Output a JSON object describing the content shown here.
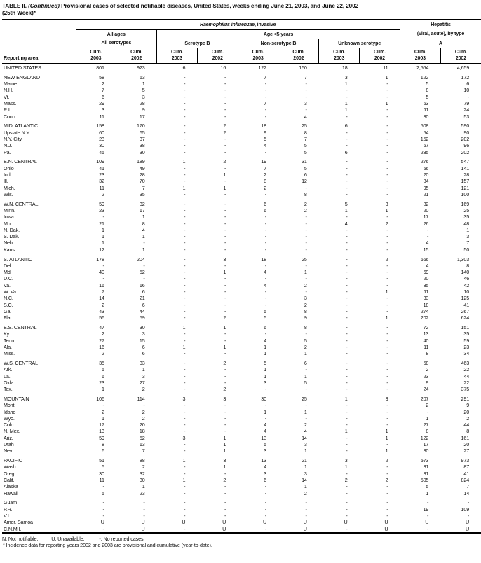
{
  "title": {
    "part1": "TABLE II.",
    "continued": "(Continued)",
    "part2": "Provisional cases of selected notifiable diseases, United States, weeks ending June 21, 2003, and June 22, 2002",
    "line2": "(25th Week)*"
  },
  "header": {
    "reporting_area": "Reporting area",
    "haemophilus_italic": "Haemophilus influenzae",
    "haemophilus_rest": ", invasive",
    "hepatitis_line1": "Hepatitis",
    "hepatitis_line2": "(viral, acute), by type",
    "all_ages": "All ages",
    "all_serotypes": "All serotypes",
    "age_under5": "Age <5 years",
    "serotype_b": "Serotype B",
    "non_serotype_b": "Non-serotype B",
    "unknown_serotype": "Unknown serotype",
    "type_a": "A",
    "cum_label": "Cum.",
    "year_pairs": [
      "2003",
      "2002"
    ]
  },
  "footnotes": {
    "legend": [
      "N: Not notifiable.",
      "U: Unavailable.",
      "-: No reported cases."
    ],
    "note": "* Incidence data for reporting years 2002 and 2003 are provisional and cumulative (year-to-date)."
  },
  "table": {
    "rows": [
      {
        "area": "UNITED STATES",
        "gap": false,
        "values": [
          "801",
          "923",
          "6",
          "16",
          "122",
          "150",
          "18",
          "11",
          "2,564",
          "4,659"
        ]
      },
      {
        "area": "NEW ENGLAND",
        "gap": true,
        "values": [
          "58",
          "63",
          "-",
          "-",
          "7",
          "7",
          "3",
          "1",
          "122",
          "172"
        ]
      },
      {
        "area": "Maine",
        "gap": false,
        "values": [
          "2",
          "1",
          "-",
          "-",
          "-",
          "-",
          "1",
          "-",
          "5",
          "6"
        ]
      },
      {
        "area": "N.H.",
        "gap": false,
        "values": [
          "7",
          "5",
          "-",
          "-",
          "-",
          "-",
          "-",
          "-",
          "8",
          "10"
        ]
      },
      {
        "area": "Vt.",
        "gap": false,
        "values": [
          "6",
          "3",
          "-",
          "-",
          "-",
          "-",
          "-",
          "-",
          "5",
          "-"
        ]
      },
      {
        "area": "Mass.",
        "gap": false,
        "values": [
          "29",
          "28",
          "-",
          "-",
          "7",
          "3",
          "1",
          "1",
          "63",
          "79"
        ]
      },
      {
        "area": "R.I.",
        "gap": false,
        "values": [
          "3",
          "9",
          "-",
          "-",
          "-",
          "-",
          "1",
          "-",
          "11",
          "24"
        ]
      },
      {
        "area": "Conn.",
        "gap": false,
        "values": [
          "11",
          "17",
          "-",
          "-",
          "-",
          "4",
          "-",
          "-",
          "30",
          "53"
        ]
      },
      {
        "area": "MID. ATLANTIC",
        "gap": true,
        "values": [
          "158",
          "170",
          "-",
          "2",
          "18",
          "25",
          "6",
          "-",
          "508",
          "590"
        ]
      },
      {
        "area": "Upstate N.Y.",
        "gap": false,
        "values": [
          "60",
          "65",
          "-",
          "2",
          "9",
          "8",
          "-",
          "-",
          "54",
          "90"
        ]
      },
      {
        "area": "N.Y. City",
        "gap": false,
        "values": [
          "23",
          "37",
          "-",
          "-",
          "5",
          "7",
          "-",
          "-",
          "152",
          "202"
        ]
      },
      {
        "area": "N.J.",
        "gap": false,
        "values": [
          "30",
          "38",
          "-",
          "-",
          "4",
          "5",
          "-",
          "-",
          "67",
          "96"
        ]
      },
      {
        "area": "Pa.",
        "gap": false,
        "values": [
          "45",
          "30",
          "-",
          "-",
          "-",
          "5",
          "6",
          "-",
          "235",
          "202"
        ]
      },
      {
        "area": "E.N. CENTRAL",
        "gap": true,
        "values": [
          "109",
          "189",
          "1",
          "2",
          "19",
          "31",
          "-",
          "-",
          "276",
          "547"
        ]
      },
      {
        "area": "Ohio",
        "gap": false,
        "values": [
          "41",
          "49",
          "-",
          "-",
          "7",
          "5",
          "-",
          "-",
          "56",
          "141"
        ]
      },
      {
        "area": "Ind.",
        "gap": false,
        "values": [
          "23",
          "28",
          "-",
          "1",
          "2",
          "6",
          "-",
          "-",
          "20",
          "28"
        ]
      },
      {
        "area": "Ill.",
        "gap": false,
        "values": [
          "32",
          "70",
          "-",
          "-",
          "8",
          "12",
          "-",
          "-",
          "84",
          "157"
        ]
      },
      {
        "area": "Mich.",
        "gap": false,
        "values": [
          "11",
          "7",
          "1",
          "1",
          "2",
          "-",
          "-",
          "-",
          "95",
          "121"
        ]
      },
      {
        "area": "Wis.",
        "gap": false,
        "values": [
          "2",
          "35",
          "-",
          "-",
          "-",
          "8",
          "-",
          "-",
          "21",
          "100"
        ]
      },
      {
        "area": "W.N. CENTRAL",
        "gap": true,
        "values": [
          "59",
          "32",
          "-",
          "-",
          "6",
          "2",
          "5",
          "3",
          "82",
          "169"
        ]
      },
      {
        "area": "Minn.",
        "gap": false,
        "values": [
          "23",
          "17",
          "-",
          "-",
          "6",
          "2",
          "1",
          "1",
          "20",
          "25"
        ]
      },
      {
        "area": "Iowa",
        "gap": false,
        "values": [
          "-",
          "1",
          "-",
          "-",
          "-",
          "-",
          "-",
          "-",
          "17",
          "35"
        ]
      },
      {
        "area": "Mo.",
        "gap": false,
        "values": [
          "21",
          "8",
          "-",
          "-",
          "-",
          "-",
          "4",
          "2",
          "26",
          "48"
        ]
      },
      {
        "area": "N. Dak.",
        "gap": false,
        "values": [
          "1",
          "4",
          "-",
          "-",
          "-",
          "-",
          "-",
          "-",
          "-",
          "1"
        ]
      },
      {
        "area": "S. Dak.",
        "gap": false,
        "values": [
          "1",
          "1",
          "-",
          "-",
          "-",
          "-",
          "-",
          "-",
          "-",
          "3"
        ]
      },
      {
        "area": "Nebr.",
        "gap": false,
        "values": [
          "1",
          "-",
          "-",
          "-",
          "-",
          "-",
          "-",
          "-",
          "4",
          "7"
        ]
      },
      {
        "area": "Kans.",
        "gap": false,
        "values": [
          "12",
          "1",
          "-",
          "-",
          "-",
          "-",
          "-",
          "-",
          "15",
          "50"
        ]
      },
      {
        "area": "S. ATLANTIC",
        "gap": true,
        "values": [
          "178",
          "204",
          "-",
          "3",
          "18",
          "25",
          "-",
          "2",
          "666",
          "1,303"
        ]
      },
      {
        "area": "Del.",
        "gap": false,
        "values": [
          "-",
          "-",
          "-",
          "-",
          "-",
          "-",
          "-",
          "-",
          "4",
          "8"
        ]
      },
      {
        "area": "Md.",
        "gap": false,
        "values": [
          "40",
          "52",
          "-",
          "1",
          "4",
          "1",
          "-",
          "-",
          "69",
          "140"
        ]
      },
      {
        "area": "D.C.",
        "gap": false,
        "values": [
          "-",
          "-",
          "-",
          "-",
          "-",
          "-",
          "-",
          "-",
          "20",
          "46"
        ]
      },
      {
        "area": "Va.",
        "gap": false,
        "values": [
          "16",
          "16",
          "-",
          "-",
          "4",
          "2",
          "-",
          "-",
          "35",
          "42"
        ]
      },
      {
        "area": "W. Va.",
        "gap": false,
        "values": [
          "7",
          "6",
          "-",
          "-",
          "-",
          "-",
          "-",
          "1",
          "11",
          "10"
        ]
      },
      {
        "area": "N.C.",
        "gap": false,
        "values": [
          "14",
          "21",
          "-",
          "-",
          "-",
          "3",
          "-",
          "-",
          "33",
          "125"
        ]
      },
      {
        "area": "S.C.",
        "gap": false,
        "values": [
          "2",
          "6",
          "-",
          "-",
          "-",
          "2",
          "-",
          "-",
          "18",
          "41"
        ]
      },
      {
        "area": "Ga.",
        "gap": false,
        "values": [
          "43",
          "44",
          "-",
          "-",
          "5",
          "8",
          "-",
          "-",
          "274",
          "267"
        ]
      },
      {
        "area": "Fla.",
        "gap": false,
        "values": [
          "56",
          "59",
          "-",
          "2",
          "5",
          "9",
          "-",
          "1",
          "202",
          "624"
        ]
      },
      {
        "area": "E.S. CENTRAL",
        "gap": true,
        "values": [
          "47",
          "30",
          "1",
          "1",
          "6",
          "8",
          "-",
          "-",
          "72",
          "151"
        ]
      },
      {
        "area": "Ky.",
        "gap": false,
        "values": [
          "2",
          "3",
          "-",
          "-",
          "-",
          "-",
          "-",
          "-",
          "13",
          "35"
        ]
      },
      {
        "area": "Tenn.",
        "gap": false,
        "values": [
          "27",
          "15",
          "-",
          "-",
          "4",
          "5",
          "-",
          "-",
          "40",
          "59"
        ]
      },
      {
        "area": "Ala.",
        "gap": false,
        "values": [
          "16",
          "6",
          "1",
          "1",
          "1",
          "2",
          "-",
          "-",
          "11",
          "23"
        ]
      },
      {
        "area": "Miss.",
        "gap": false,
        "values": [
          "2",
          "6",
          "-",
          "-",
          "1",
          "1",
          "-",
          "-",
          "8",
          "34"
        ]
      },
      {
        "area": "W.S. CENTRAL",
        "gap": true,
        "values": [
          "35",
          "33",
          "-",
          "2",
          "5",
          "6",
          "-",
          "-",
          "58",
          "463"
        ]
      },
      {
        "area": "Ark.",
        "gap": false,
        "values": [
          "5",
          "1",
          "-",
          "-",
          "1",
          "-",
          "-",
          "-",
          "2",
          "22"
        ]
      },
      {
        "area": "La.",
        "gap": false,
        "values": [
          "6",
          "3",
          "-",
          "-",
          "1",
          "1",
          "-",
          "-",
          "23",
          "44"
        ]
      },
      {
        "area": "Okla.",
        "gap": false,
        "values": [
          "23",
          "27",
          "-",
          "-",
          "3",
          "5",
          "-",
          "-",
          "9",
          "22"
        ]
      },
      {
        "area": "Tex.",
        "gap": false,
        "values": [
          "1",
          "2",
          "-",
          "2",
          "-",
          "-",
          "-",
          "-",
          "24",
          "375"
        ]
      },
      {
        "area": "MOUNTAIN",
        "gap": true,
        "values": [
          "106",
          "114",
          "3",
          "3",
          "30",
          "25",
          "1",
          "3",
          "207",
          "291"
        ]
      },
      {
        "area": "Mont.",
        "gap": false,
        "values": [
          "-",
          "-",
          "-",
          "-",
          "-",
          "-",
          "-",
          "-",
          "2",
          "9"
        ]
      },
      {
        "area": "Idaho",
        "gap": false,
        "values": [
          "2",
          "2",
          "-",
          "-",
          "1",
          "1",
          "-",
          "-",
          "-",
          "20"
        ]
      },
      {
        "area": "Wyo.",
        "gap": false,
        "values": [
          "1",
          "2",
          "-",
          "-",
          "-",
          "-",
          "-",
          "-",
          "1",
          "2"
        ]
      },
      {
        "area": "Colo.",
        "gap": false,
        "values": [
          "17",
          "20",
          "-",
          "-",
          "4",
          "2",
          "-",
          "-",
          "27",
          "44"
        ]
      },
      {
        "area": "N. Mex.",
        "gap": false,
        "values": [
          "13",
          "18",
          "-",
          "-",
          "4",
          "4",
          "1",
          "1",
          "8",
          "8"
        ]
      },
      {
        "area": "Ariz.",
        "gap": false,
        "values": [
          "59",
          "52",
          "3",
          "1",
          "13",
          "14",
          "-",
          "1",
          "122",
          "161"
        ]
      },
      {
        "area": "Utah",
        "gap": false,
        "values": [
          "8",
          "13",
          "-",
          "1",
          "5",
          "3",
          "-",
          "-",
          "17",
          "20"
        ]
      },
      {
        "area": "Nev.",
        "gap": false,
        "values": [
          "6",
          "7",
          "-",
          "1",
          "3",
          "1",
          "-",
          "1",
          "30",
          "27"
        ]
      },
      {
        "area": "PACIFIC",
        "gap": true,
        "values": [
          "51",
          "88",
          "1",
          "3",
          "13",
          "21",
          "3",
          "2",
          "573",
          "973"
        ]
      },
      {
        "area": "Wash.",
        "gap": false,
        "values": [
          "5",
          "2",
          "-",
          "1",
          "4",
          "1",
          "1",
          "-",
          "31",
          "87"
        ]
      },
      {
        "area": "Oreg.",
        "gap": false,
        "values": [
          "30",
          "32",
          "-",
          "-",
          "3",
          "3",
          "-",
          "-",
          "31",
          "41"
        ]
      },
      {
        "area": "Calif.",
        "gap": false,
        "values": [
          "11",
          "30",
          "1",
          "2",
          "6",
          "14",
          "2",
          "2",
          "505",
          "824"
        ]
      },
      {
        "area": "Alaska",
        "gap": false,
        "values": [
          "-",
          "1",
          "-",
          "-",
          "-",
          "1",
          "-",
          "-",
          "5",
          "7"
        ]
      },
      {
        "area": "Hawaii",
        "gap": false,
        "values": [
          "5",
          "23",
          "-",
          "-",
          "-",
          "2",
          "-",
          "-",
          "1",
          "14"
        ]
      },
      {
        "area": "Guam",
        "gap": true,
        "values": [
          "-",
          "-",
          "-",
          "-",
          "-",
          "-",
          "-",
          "-",
          "-",
          "-"
        ]
      },
      {
        "area": "P.R.",
        "gap": false,
        "values": [
          "-",
          "-",
          "-",
          "-",
          "-",
          "-",
          "-",
          "-",
          "19",
          "109"
        ]
      },
      {
        "area": "V.I.",
        "gap": false,
        "values": [
          "-",
          "-",
          "-",
          "-",
          "-",
          "-",
          "-",
          "-",
          "-",
          "-"
        ]
      },
      {
        "area": "Amer. Samoa",
        "gap": false,
        "values": [
          "U",
          "U",
          "U",
          "U",
          "U",
          "U",
          "U",
          "U",
          "U",
          "U"
        ]
      },
      {
        "area": "C.N.M.I.",
        "gap": false,
        "values": [
          "-",
          "U",
          "-",
          "U",
          "-",
          "U",
          "-",
          "U",
          "-",
          "U"
        ]
      }
    ]
  }
}
